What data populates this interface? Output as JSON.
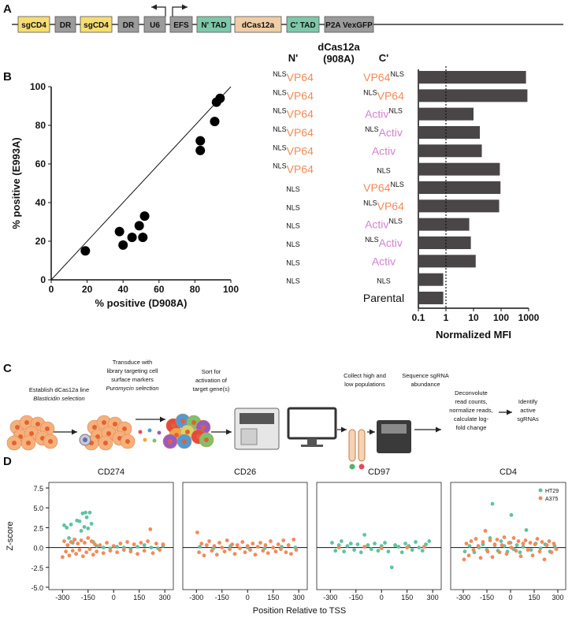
{
  "panel_labels": [
    "A",
    "B",
    "C",
    "D"
  ],
  "construct": {
    "elements": [
      {
        "label": "sgCD4",
        "color": "#f6dd72"
      },
      {
        "label": "DR",
        "color": "#9b9b9b"
      },
      {
        "label": "sgCD4",
        "color": "#f6dd72"
      },
      {
        "label": "DR",
        "color": "#9b9b9b"
      },
      {
        "label": "U6",
        "color": "#9b9b9b"
      },
      {
        "label": "EFS",
        "color": "#9b9b9b"
      },
      {
        "label": "N' TAD",
        "color": "#7ec8aa"
      },
      {
        "label": "dCas12a",
        "color": "#efcda7"
      },
      {
        "label": "C' TAD",
        "color": "#7ec8aa"
      },
      {
        "label": "P2A VexGFP",
        "color": "#9b9b9b"
      }
    ]
  },
  "workflow": {
    "steps": [
      {
        "lines": [
          "Establish dCas12a line"
        ],
        "note": "Blasticidin selection"
      },
      {
        "lines": [
          "Transduce with",
          "library targeting cell",
          "surface markers"
        ],
        "note": "Puromycin selection"
      },
      {
        "lines": [
          "Sort for",
          "activation of",
          "target gene(s)"
        ]
      },
      {
        "lines": [
          "Collect high and",
          "low populations"
        ]
      },
      {
        "lines": [
          "Sequence sgRNA",
          "abundance"
        ]
      },
      {
        "lines": [
          "Deconvolute",
          "read counts,",
          "normalize reads,",
          "calculate log-",
          "fold change"
        ]
      },
      {
        "lines": [
          "Identify",
          "active",
          "sgRNAs"
        ]
      }
    ]
  },
  "panel_d": {
    "xlabel": "Position Relative to TSS",
    "ylabel": "Z-score"
  },
  "chart_data": [
    {
      "type": "scatter",
      "xlabel": "% positive (D908A)",
      "ylabel": "% positive (E993A)",
      "x": [
        19,
        38,
        40,
        45,
        49,
        51,
        52,
        83,
        83,
        91,
        92,
        94
      ],
      "values": [
        15,
        25,
        18,
        22,
        28,
        22,
        33,
        72,
        67,
        82,
        92,
        94
      ],
      "color": "#000000",
      "identity_line": true,
      "xlim": [
        0,
        100
      ],
      "ylim": [
        0,
        100
      ],
      "xticks": [
        0,
        20,
        40,
        60,
        80,
        100
      ],
      "yticks": [
        0,
        20,
        40,
        60,
        80,
        100
      ]
    },
    {
      "type": "bar",
      "orientation": "horizontal",
      "xlabel": "Normalized MFI",
      "headers": {
        "n": "N'",
        "center": [
          "dCas12a",
          "(908A)"
        ],
        "c": "C'"
      },
      "categories": [
        {
          "n": [
            {
              "text": "NLS",
              "sup": true
            },
            {
              "text": "VP64",
              "color": "#f28a57"
            }
          ],
          "c": [
            {
              "text": "VP64",
              "color": "#f28a57"
            },
            {
              "text": "NLS",
              "sup": true
            }
          ]
        },
        {
          "n": [
            {
              "text": "NLS",
              "sup": true
            },
            {
              "text": "VP64",
              "color": "#f28a57"
            }
          ],
          "c": [
            {
              "text": "NLS",
              "sup": true
            },
            {
              "text": "VP64",
              "color": "#f28a57"
            }
          ]
        },
        {
          "n": [
            {
              "text": "NLS",
              "sup": true
            },
            {
              "text": "VP64",
              "color": "#f28a57"
            }
          ],
          "c": [
            {
              "text": "Activ",
              "color": "#d680cf"
            },
            {
              "text": "NLS",
              "sup": true
            }
          ]
        },
        {
          "n": [
            {
              "text": "NLS",
              "sup": true
            },
            {
              "text": "VP64",
              "color": "#f28a57"
            }
          ],
          "c": [
            {
              "text": "NLS",
              "sup": true
            },
            {
              "text": "Activ",
              "color": "#d680cf"
            }
          ]
        },
        {
          "n": [
            {
              "text": "NLS",
              "sup": true
            },
            {
              "text": "VP64",
              "color": "#f28a57"
            }
          ],
          "c": [
            {
              "text": "Activ",
              "color": "#d680cf"
            }
          ]
        },
        {
          "n": [
            {
              "text": "NLS",
              "sup": true
            },
            {
              "text": "VP64",
              "color": "#f28a57"
            }
          ],
          "c": [
            {
              "text": "NLS",
              "small": true
            }
          ]
        },
        {
          "n": [
            {
              "text": "NLS",
              "small": true
            }
          ],
          "c": [
            {
              "text": "VP64",
              "color": "#f28a57"
            },
            {
              "text": "NLS",
              "sup": true
            }
          ]
        },
        {
          "n": [
            {
              "text": "NLS",
              "small": true
            }
          ],
          "c": [
            {
              "text": "NLS",
              "sup": true
            },
            {
              "text": "VP64",
              "color": "#f28a57"
            }
          ]
        },
        {
          "n": [
            {
              "text": "NLS",
              "small": true
            }
          ],
          "c": [
            {
              "text": "Activ",
              "color": "#d680cf"
            },
            {
              "text": "NLS",
              "sup": true
            }
          ]
        },
        {
          "n": [
            {
              "text": "NLS",
              "small": true
            }
          ],
          "c": [
            {
              "text": "NLS",
              "sup": true
            },
            {
              "text": "Activ",
              "color": "#d680cf"
            }
          ]
        },
        {
          "n": [
            {
              "text": "NLS",
              "small": true
            }
          ],
          "c": [
            {
              "text": "Activ",
              "color": "#d680cf"
            }
          ]
        },
        {
          "n": [
            {
              "text": "NLS",
              "small": true
            }
          ],
          "c": [
            {
              "text": "NLS",
              "small": true
            }
          ]
        },
        {
          "n": [],
          "c": [
            {
              "text": "Parental"
            }
          ]
        }
      ],
      "values": [
        800,
        900,
        10,
        17,
        20,
        90,
        95,
        85,
        7,
        8,
        12,
        0.8,
        0.8
      ],
      "color": "#4a4546",
      "log": true,
      "reference_line": 1,
      "xlim": [
        0.1,
        1000
      ],
      "xticks": [
        0.1,
        1,
        10,
        100,
        1000
      ]
    },
    {
      "type": "scatter",
      "title": "CD274",
      "xlim": [
        -380,
        350
      ],
      "ylim": [
        -5.3,
        8.2
      ],
      "xticks": [
        -300,
        -150,
        0,
        150,
        300
      ],
      "yticks": [
        {
          "value": -5,
          "label": "-5.0"
        },
        -2.5,
        {
          "value": 0,
          "label": "0.0"
        },
        2.5,
        {
          "value": 5,
          "label": "5.0"
        },
        7.5
      ],
      "reference_line": 0,
      "series": [
        {
          "name": "HT29",
          "color": "#5ec4a0",
          "x": [
            -290,
            -275,
            -262,
            -250,
            -240,
            -228,
            -215,
            -200,
            -190,
            -182,
            -172,
            -165,
            -158,
            -150,
            -140,
            -130,
            -120,
            -100,
            -60,
            -20,
            20,
            60,
            100,
            140,
            180,
            220,
            260,
            290
          ],
          "values": [
            2.8,
            2.5,
            1.2,
            2.9,
            0.6,
            1.0,
            3.4,
            3.3,
            2.1,
            4.3,
            2.6,
            4.4,
            3.8,
            2.4,
            4.4,
            3.0,
            0.7,
            0.2,
            0.0,
            -0.1,
            0.1,
            0.0,
            -0.2,
            0.1,
            0.3,
            0.0,
            -0.1,
            0.2
          ]
        },
        {
          "name": "A375",
          "color": "#f4895a",
          "x": [
            -300,
            -290,
            -280,
            -270,
            -260,
            -250,
            -240,
            -230,
            -220,
            -210,
            -200,
            -190,
            -180,
            -170,
            -160,
            -150,
            -140,
            -130,
            -120,
            -110,
            -100,
            -80,
            -60,
            -40,
            -20,
            0,
            20,
            40,
            60,
            80,
            100,
            120,
            140,
            160,
            180,
            200,
            215,
            230,
            250,
            270,
            290
          ],
          "values": [
            -1.2,
            0.8,
            -0.5,
            0.3,
            -1.0,
            0.7,
            -0.4,
            1.0,
            -0.8,
            0.5,
            -0.3,
            0.9,
            -1.1,
            0.6,
            -0.6,
            1.2,
            -0.2,
            0.8,
            -0.9,
            0.4,
            -0.5,
            0.3,
            -0.7,
            0.6,
            -0.4,
            0.2,
            -0.6,
            0.5,
            -0.3,
            0.7,
            -0.5,
            0.4,
            -0.8,
            0.6,
            -0.4,
            0.8,
            2.3,
            -0.7,
            0.5,
            -0.3,
            0.4
          ]
        }
      ]
    },
    {
      "type": "scatter",
      "title": "CD26",
      "xlim": [
        -380,
        350
      ],
      "ylim": [
        -5.3,
        8.2
      ],
      "xticks": [
        -300,
        -150,
        0,
        150,
        300
      ],
      "reference_line": 0,
      "series": [
        {
          "name": "HT29",
          "color": "#5ec4a0",
          "x": [
            -280,
            -200,
            -100,
            0,
            100,
            200,
            280
          ],
          "values": [
            0.1,
            -0.1,
            0.2,
            0.0,
            -0.1,
            0.1,
            0.0
          ]
        },
        {
          "name": "A375",
          "color": "#f4895a",
          "x": [
            -295,
            -285,
            -270,
            -255,
            -240,
            -225,
            -210,
            -195,
            -180,
            -165,
            -150,
            -135,
            -120,
            -105,
            -90,
            -75,
            -60,
            -45,
            -30,
            -15,
            0,
            15,
            30,
            45,
            60,
            75,
            90,
            105,
            120,
            135,
            150,
            165,
            180,
            195,
            210,
            225,
            240,
            255,
            270,
            285
          ],
          "values": [
            1.9,
            -0.6,
            0.5,
            -1.0,
            0.3,
            0.8,
            -0.4,
            0.2,
            -0.9,
            0.6,
            0.0,
            -0.5,
            0.9,
            -0.2,
            0.4,
            -0.8,
            0.3,
            -0.1,
            0.7,
            -0.6,
            0.2,
            -0.3,
            0.5,
            -0.9,
            0.1,
            0.6,
            -0.4,
            0.3,
            -0.7,
            0.8,
            0.0,
            -0.5,
            0.4,
            -0.2,
            0.9,
            -0.6,
            0.3,
            -0.8,
            1.0,
            -0.3
          ]
        }
      ]
    },
    {
      "type": "scatter",
      "title": "CD97",
      "xlim": [
        -380,
        350
      ],
      "ylim": [
        -5.3,
        8.2
      ],
      "xticks": [
        -300,
        -150,
        0,
        150,
        300
      ],
      "reference_line": 0,
      "series": [
        {
          "name": "HT29",
          "color": "#5ec4a0",
          "x": [
            -290,
            -270,
            -250,
            -235,
            -220,
            -200,
            -180,
            -160,
            -140,
            -120,
            -100,
            -80,
            -60,
            -40,
            -20,
            0,
            20,
            40,
            60,
            80,
            100,
            120,
            140,
            160,
            180,
            200,
            220,
            240,
            260,
            280
          ],
          "values": [
            0.6,
            -0.4,
            0.3,
            0.8,
            -0.5,
            0.2,
            0.5,
            -0.3,
            0.4,
            -0.6,
            1.6,
            0.3,
            -0.2,
            0.5,
            -0.4,
            0.2,
            0.6,
            -0.5,
            -2.5,
            0.3,
            0.1,
            -0.6,
            0.5,
            0.2,
            -0.3,
            0.7,
            0.0,
            -0.4,
            0.4,
            0.8
          ]
        },
        {
          "name": "A375",
          "color": "#f4895a",
          "x": [
            -250,
            -100,
            0,
            150,
            250
          ],
          "values": [
            0.0,
            0.1,
            -0.1,
            0.0,
            0.1
          ]
        }
      ]
    },
    {
      "type": "scatter",
      "title": "CD4",
      "xlim": [
        -380,
        350
      ],
      "ylim": [
        -5.3,
        8.2
      ],
      "xticks": [
        -300,
        -150,
        0,
        150,
        300
      ],
      "reference_line": 0,
      "legend": "upper right",
      "series": [
        {
          "name": "HT29",
          "color": "#5ec4a0",
          "x": [
            -290,
            -260,
            -230,
            -200,
            -175,
            -150,
            -130,
            -115,
            -100,
            -80,
            -60,
            -40,
            -20,
            0,
            5,
            20,
            40,
            60,
            80,
            100,
            130,
            160,
            190,
            220,
            250,
            280
          ],
          "values": [
            -0.5,
            0.2,
            -0.6,
            0.0,
            0.4,
            -0.3,
            1.2,
            5.5,
            0.3,
            -0.4,
            0.8,
            0.2,
            -0.5,
            0.6,
            4.1,
            -0.2,
            0.3,
            -0.6,
            0.1,
            2.2,
            -0.3,
            0.5,
            -0.1,
            0.4,
            -0.5,
            0.2
          ]
        },
        {
          "name": "A375",
          "color": "#f4895a",
          "x": [
            -295,
            -280,
            -265,
            -250,
            -235,
            -220,
            -205,
            -190,
            -175,
            -160,
            -145,
            -130,
            -115,
            -100,
            -85,
            -70,
            -55,
            -40,
            -25,
            -10,
            5,
            20,
            35,
            50,
            65,
            80,
            95,
            110,
            125,
            140,
            155,
            170,
            185,
            200,
            215,
            230,
            245,
            260,
            275,
            290
          ],
          "values": [
            -1.5,
            0.5,
            -1.0,
            0.8,
            -0.3,
            1.1,
            0.2,
            -1.3,
            0.7,
            2.1,
            -0.5,
            0.9,
            -1.2,
            0.4,
            1.0,
            -0.6,
            0.3,
            1.3,
            -0.8,
            0.6,
            0.0,
            1.2,
            -0.4,
            0.8,
            -1.1,
            0.5,
            0.9,
            -0.3,
            0.6,
            -1.0,
            0.4,
            1.1,
            -0.5,
            0.7,
            -1.5,
            0.3,
            0.8,
            -0.6,
            0.5,
            -0.2
          ]
        }
      ]
    }
  ]
}
